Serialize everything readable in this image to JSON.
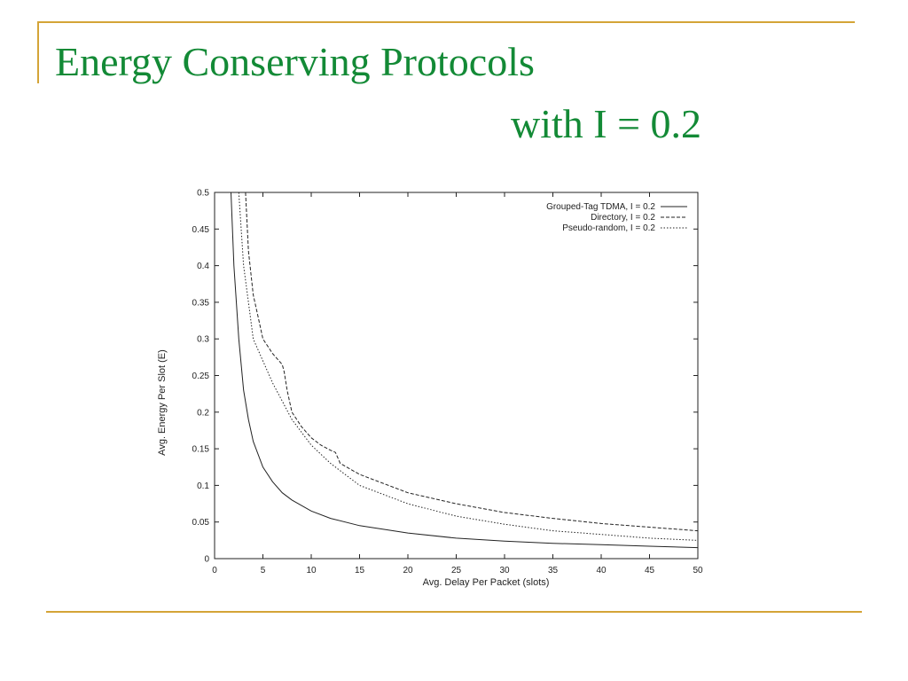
{
  "slide": {
    "title_line1": "Energy Conserving Protocols",
    "title_line2": "with I = 0.2",
    "accent_color": "#d4a437",
    "title_color": "#138a36"
  },
  "chart_data": {
    "type": "line",
    "xlabel": "Avg. Delay Per Packet (slots)",
    "ylabel": "Avg. Energy Per Slot (E)",
    "xlim": [
      0,
      50
    ],
    "ylim": [
      0,
      0.5
    ],
    "xticks": [
      0,
      5,
      10,
      15,
      20,
      25,
      30,
      35,
      40,
      45,
      50
    ],
    "yticks": [
      0,
      0.05,
      0.1,
      0.15,
      0.2,
      0.25,
      0.3,
      0.35,
      0.4,
      0.45,
      0.5
    ],
    "grid": false,
    "legend_position": "top-right",
    "series": [
      {
        "name": "Grouped-Tag TDMA, I = 0.2",
        "style": "solid",
        "x": [
          1.7,
          2.0,
          2.5,
          3,
          3.5,
          4,
          5,
          6,
          7,
          8,
          10,
          12,
          15,
          20,
          25,
          30,
          35,
          40,
          45,
          50
        ],
        "y": [
          0.5,
          0.4,
          0.3,
          0.23,
          0.19,
          0.16,
          0.125,
          0.105,
          0.09,
          0.08,
          0.065,
          0.055,
          0.045,
          0.035,
          0.028,
          0.024,
          0.021,
          0.019,
          0.017,
          0.015
        ]
      },
      {
        "name": "Directory, I = 0.2",
        "style": "dashed",
        "x": [
          3.2,
          3.5,
          4,
          4.5,
          5,
          6,
          7,
          7.2,
          7.5,
          8,
          9,
          10,
          11,
          12,
          12.5,
          13,
          15,
          20,
          25,
          30,
          35,
          40,
          45,
          50
        ],
        "y": [
          0.5,
          0.42,
          0.36,
          0.33,
          0.3,
          0.28,
          0.265,
          0.255,
          0.23,
          0.2,
          0.18,
          0.165,
          0.155,
          0.148,
          0.145,
          0.13,
          0.115,
          0.09,
          0.075,
          0.063,
          0.055,
          0.048,
          0.043,
          0.038
        ]
      },
      {
        "name": "Pseudo-random, I = 0.2",
        "style": "dotted",
        "x": [
          2.5,
          3,
          3.5,
          4,
          5,
          6,
          7,
          8,
          10,
          12,
          15,
          20,
          25,
          30,
          35,
          40,
          45,
          50
        ],
        "y": [
          0.5,
          0.4,
          0.35,
          0.3,
          0.27,
          0.24,
          0.215,
          0.19,
          0.155,
          0.13,
          0.1,
          0.075,
          0.058,
          0.047,
          0.038,
          0.033,
          0.028,
          0.025
        ]
      }
    ]
  }
}
